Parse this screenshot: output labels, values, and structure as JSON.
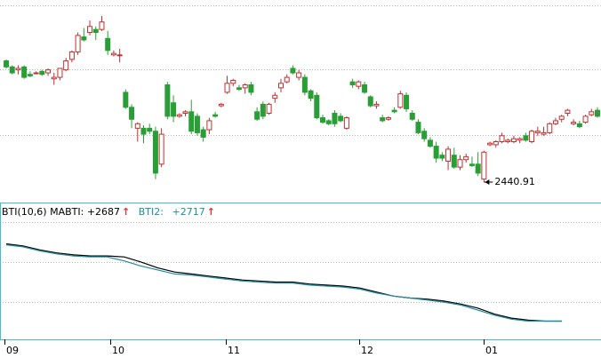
{
  "chart_data": [
    {
      "type": "candlestick",
      "title": "",
      "colors": {
        "up": "#c0302f",
        "down": "#2a9e36",
        "grid": "#b8b8b8"
      },
      "low_marker": {
        "label": "2440.91"
      },
      "x_ticks": [
        "09",
        "10",
        "11",
        "12",
        "01"
      ],
      "candles": [
        {
          "o": 51,
          "h": 52,
          "l": 46,
          "c": 47
        },
        {
          "o": 47,
          "h": 48,
          "l": 42,
          "c": 43
        },
        {
          "o": 45,
          "h": 48,
          "l": 42,
          "c": 46
        },
        {
          "o": 47,
          "h": 48,
          "l": 39,
          "c": 40
        },
        {
          "o": 42,
          "h": 44,
          "l": 40,
          "c": 41
        },
        {
          "o": 43,
          "h": 44,
          "l": 42,
          "c": 43
        },
        {
          "o": 44,
          "h": 45,
          "l": 41,
          "c": 42
        },
        {
          "o": 43,
          "h": 46,
          "l": 41,
          "c": 45
        },
        {
          "o": 39,
          "h": 43,
          "l": 35,
          "c": 40
        },
        {
          "o": 40,
          "h": 46,
          "l": 38,
          "c": 46
        },
        {
          "o": 45,
          "h": 53,
          "l": 44,
          "c": 51
        },
        {
          "o": 52,
          "h": 58,
          "l": 50,
          "c": 57
        },
        {
          "o": 57,
          "h": 70,
          "l": 55,
          "c": 68
        },
        {
          "o": 67,
          "h": 73,
          "l": 64,
          "c": 65
        },
        {
          "o": 70,
          "h": 78,
          "l": 68,
          "c": 74
        },
        {
          "o": 72,
          "h": 74,
          "l": 65,
          "c": 70
        },
        {
          "o": 72,
          "h": 81,
          "l": 71,
          "c": 77
        },
        {
          "o": 66,
          "h": 71,
          "l": 55,
          "c": 58
        },
        {
          "o": 55,
          "h": 58,
          "l": 54,
          "c": 56
        },
        {
          "o": 55,
          "h": 59,
          "l": 50,
          "c": 55
        },
        {
          "o": 30,
          "h": 32,
          "l": 19,
          "c": 20
        },
        {
          "o": 20,
          "h": 22,
          "l": 6,
          "c": 12
        },
        {
          "o": 6,
          "h": 10,
          "l": -3,
          "c": 9
        },
        {
          "o": 6,
          "h": 8,
          "l": -4,
          "c": 2
        },
        {
          "o": 6,
          "h": 9,
          "l": 2,
          "c": 4
        },
        {
          "o": 4,
          "h": 7,
          "l": -28,
          "c": -24
        },
        {
          "o": -18,
          "h": 6,
          "l": -20,
          "c": 2
        },
        {
          "o": 35,
          "h": 37,
          "l": 12,
          "c": 14
        },
        {
          "o": 23,
          "h": 28,
          "l": 10,
          "c": 14
        },
        {
          "o": 14,
          "h": 16,
          "l": 13,
          "c": 15
        },
        {
          "o": 16,
          "h": 18,
          "l": 14,
          "c": 17
        },
        {
          "o": 17,
          "h": 25,
          "l": 2,
          "c": 4
        },
        {
          "o": 14,
          "h": 16,
          "l": 1,
          "c": 3
        },
        {
          "o": 5,
          "h": 7,
          "l": -3,
          "c": 0
        },
        {
          "o": 5,
          "h": 13,
          "l": 2,
          "c": 11
        },
        {
          "o": 15,
          "h": 17,
          "l": 13,
          "c": 14
        },
        {
          "o": 21,
          "h": 23,
          "l": 20,
          "c": 22
        },
        {
          "o": 30,
          "h": 41,
          "l": 29,
          "c": 36
        },
        {
          "o": 36,
          "h": 39,
          "l": 34,
          "c": 38
        },
        {
          "o": 33,
          "h": 35,
          "l": 31,
          "c": 32
        },
        {
          "o": 33,
          "h": 36,
          "l": 29,
          "c": 35
        },
        {
          "o": 35,
          "h": 37,
          "l": 28,
          "c": 30
        },
        {
          "o": 17,
          "h": 20,
          "l": 11,
          "c": 12
        },
        {
          "o": 22,
          "h": 24,
          "l": 12,
          "c": 14
        },
        {
          "o": 16,
          "h": 23,
          "l": 15,
          "c": 22
        },
        {
          "o": 26,
          "h": 30,
          "l": 23,
          "c": 28
        },
        {
          "o": 33,
          "h": 39,
          "l": 30,
          "c": 36
        },
        {
          "o": 37,
          "h": 42,
          "l": 36,
          "c": 40
        },
        {
          "o": 46,
          "h": 48,
          "l": 42,
          "c": 43
        },
        {
          "o": 40,
          "h": 45,
          "l": 38,
          "c": 43
        },
        {
          "o": 40,
          "h": 42,
          "l": 28,
          "c": 30
        },
        {
          "o": 31,
          "h": 32,
          "l": 24,
          "c": 26
        },
        {
          "o": 28,
          "h": 30,
          "l": 12,
          "c": 13
        },
        {
          "o": 13,
          "h": 15,
          "l": 9,
          "c": 10
        },
        {
          "o": 11,
          "h": 12,
          "l": 8,
          "c": 9
        },
        {
          "o": 16,
          "h": 18,
          "l": 7,
          "c": 9
        },
        {
          "o": 14,
          "h": 16,
          "l": 10,
          "c": 11
        },
        {
          "o": 6,
          "h": 14,
          "l": 5,
          "c": 13
        },
        {
          "o": 37,
          "h": 39,
          "l": 33,
          "c": 35
        },
        {
          "o": 34,
          "h": 38,
          "l": 32,
          "c": 37
        },
        {
          "o": 35,
          "h": 37,
          "l": 29,
          "c": 30
        },
        {
          "o": 27,
          "h": 28,
          "l": 20,
          "c": 21
        },
        {
          "o": 21,
          "h": 24,
          "l": 19,
          "c": 22
        },
        {
          "o": 13,
          "h": 15,
          "l": 10,
          "c": 11
        },
        {
          "o": 12,
          "h": 14,
          "l": 11,
          "c": 13
        },
        {
          "o": 18,
          "h": 20,
          "l": 16,
          "c": 17
        },
        {
          "o": 20,
          "h": 31,
          "l": 19,
          "c": 29
        },
        {
          "o": 28,
          "h": 30,
          "l": 17,
          "c": 19
        },
        {
          "o": 16,
          "h": 18,
          "l": 11,
          "c": 12
        },
        {
          "o": 10,
          "h": 12,
          "l": 2,
          "c": 3
        },
        {
          "o": 4,
          "h": 6,
          "l": -3,
          "c": -1
        },
        {
          "o": -2,
          "h": 0,
          "l": -7,
          "c": -6
        },
        {
          "o": -6,
          "h": -3,
          "l": -17,
          "c": -14
        },
        {
          "o": -12,
          "h": -10,
          "l": -16,
          "c": -14
        },
        {
          "o": -16,
          "h": -6,
          "l": -22,
          "c": -8
        },
        {
          "o": -12,
          "h": -7,
          "l": -21,
          "c": -20
        },
        {
          "o": -20,
          "h": -12,
          "l": -22,
          "c": -15
        },
        {
          "o": -15,
          "h": -11,
          "l": -17,
          "c": -13
        },
        {
          "o": -18,
          "h": -13,
          "l": -20,
          "c": -19
        },
        {
          "o": -18,
          "h": -10,
          "l": -26,
          "c": -24
        },
        {
          "o": -28,
          "h": -9,
          "l": -30,
          "c": -10
        },
        {
          "o": -5,
          "h": -3,
          "l": -6,
          "c": -4
        },
        {
          "o": -5,
          "h": -2,
          "l": -7,
          "c": -3
        },
        {
          "o": -3,
          "h": 3,
          "l": -4,
          "c": 1
        },
        {
          "o": -3,
          "h": -1,
          "l": -4,
          "c": -2
        },
        {
          "o": -3,
          "h": 1,
          "l": -4,
          "c": -1
        },
        {
          "o": -2,
          "h": 0,
          "l": -4,
          "c": -1
        },
        {
          "o": 1,
          "h": 3,
          "l": -3,
          "c": -2
        },
        {
          "o": -3,
          "h": 5,
          "l": -4,
          "c": 4
        },
        {
          "o": 3,
          "h": 7,
          "l": 1,
          "c": 4
        },
        {
          "o": 2,
          "h": 7,
          "l": 1,
          "c": 3
        },
        {
          "o": 3,
          "h": 10,
          "l": 2,
          "c": 9
        },
        {
          "o": 9,
          "h": 13,
          "l": 8,
          "c": 11
        },
        {
          "o": 12,
          "h": 15,
          "l": 10,
          "c": 14
        },
        {
          "o": 16,
          "h": 19,
          "l": 14,
          "c": 18
        },
        {
          "o": 9,
          "h": 12,
          "l": 8,
          "c": 10
        },
        {
          "o": 9,
          "h": 11,
          "l": 6,
          "c": 7
        },
        {
          "o": 10,
          "h": 15,
          "l": 9,
          "c": 14
        },
        {
          "o": 15,
          "h": 19,
          "l": 14,
          "c": 17
        },
        {
          "o": 18,
          "h": 20,
          "l": 13,
          "c": 14
        }
      ]
    },
    {
      "type": "line",
      "legend": {
        "name": "BTI(10,6) MABTI:",
        "value": "+2687",
        "name2": "BTI2:",
        "value2": "+2717",
        "arrow": "↑"
      },
      "series": [
        {
          "key": "bti",
          "color": "#000000",
          "values": [
            96,
            94,
            90,
            87,
            85,
            84,
            84,
            83,
            78,
            72,
            68,
            66,
            64,
            62,
            60,
            59,
            58,
            58,
            56,
            55,
            54,
            52,
            48,
            44,
            42,
            41,
            39,
            36,
            32,
            26,
            22,
            20,
            19,
            19
          ]
        },
        {
          "key": "bti2",
          "color": "#1e8fa0",
          "values": [
            95,
            93,
            89,
            86,
            84,
            83,
            83,
            79,
            74,
            70,
            66,
            65,
            63,
            61,
            59,
            58,
            57,
            57,
            55,
            54,
            53,
            51,
            47,
            44,
            42,
            40,
            38,
            35,
            30,
            25,
            21,
            19,
            19,
            19
          ]
        }
      ]
    }
  ]
}
